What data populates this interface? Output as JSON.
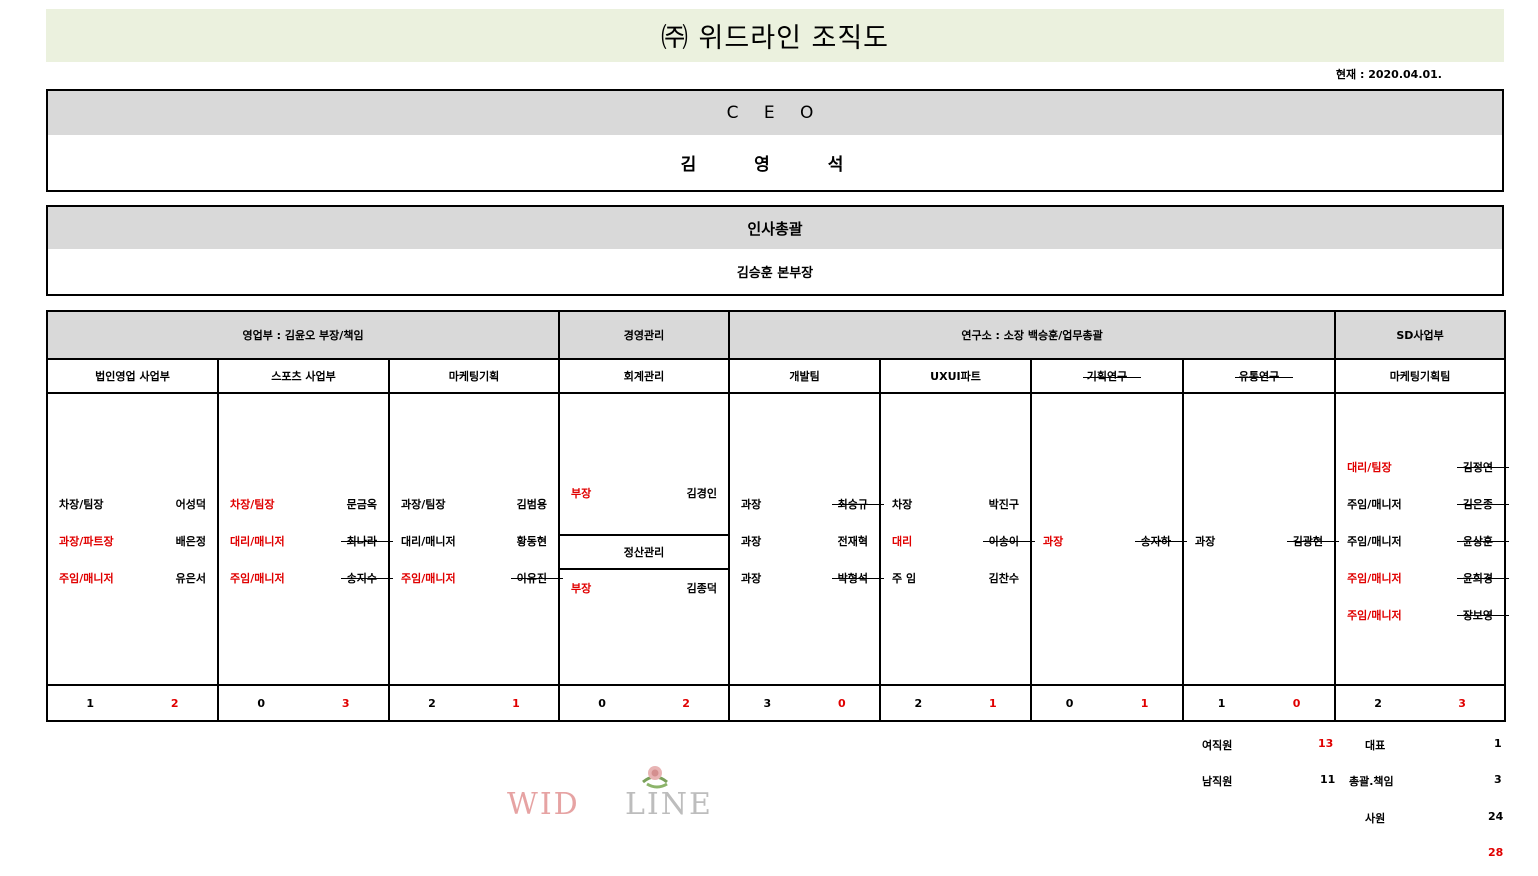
{
  "header": {
    "title": "㈜ 위드라인 조직도",
    "date": "현재 : 2020.04.01."
  },
  "ceo": {
    "label": "C E O",
    "name": "김 영 석"
  },
  "hr": {
    "label": "인사총괄",
    "name": "김승훈 본부장"
  },
  "groups": [
    {
      "label": "영업부 : 김윤오 부장/책임"
    },
    {
      "label": "경영관리"
    },
    {
      "label": "연구소 : 소장 백승훈/업무총괄"
    },
    {
      "label": "SD사업부"
    }
  ],
  "teams": [
    {
      "name": "법인영업 사업부",
      "members": [
        {
          "title": "차장/팀장",
          "name": "어성덕",
          "red": false,
          "struck": false
        },
        {
          "title": "과장/파트장",
          "name": "배은정",
          "red": true,
          "struck": false
        },
        {
          "title": "주임/매니저",
          "name": "유은서",
          "red": true,
          "struck": false
        }
      ],
      "counts": [
        "1",
        "2"
      ]
    },
    {
      "name": "스포츠 사업부",
      "members": [
        {
          "title": "차장/팀장",
          "name": "문금옥",
          "red": true,
          "struck": false
        },
        {
          "title": "대리/매니저",
          "name": "최나라",
          "red": true,
          "struck": true
        },
        {
          "title": "주임/매니저",
          "name": "송지수",
          "red": true,
          "struck": true
        }
      ],
      "counts": [
        "0",
        "3"
      ]
    },
    {
      "name": "마케팅기획",
      "members": [
        {
          "title": "과장/팀장",
          "name": "김범용",
          "red": false,
          "struck": false
        },
        {
          "title": "대리/매니저",
          "name": "황동현",
          "red": false,
          "struck": false
        },
        {
          "title": "주임/매니저",
          "name": "이유진",
          "red": true,
          "struck": true
        }
      ],
      "counts": [
        "2",
        "1"
      ]
    },
    {
      "name": "회계관리",
      "members": [
        {
          "title": "부장",
          "name": "김경인",
          "red": true,
          "struck": false
        }
      ],
      "sub": {
        "name": "정산관리",
        "members": [
          {
            "title": "부장",
            "name": "김종덕",
            "red": true,
            "struck": false
          }
        ]
      },
      "counts": [
        "0",
        "2"
      ]
    },
    {
      "name": "개발팀",
      "members": [
        {
          "title": "과장",
          "name": "최승규",
          "red": false,
          "struck": true
        },
        {
          "title": "과장",
          "name": "전재혁",
          "red": false,
          "struck": false
        },
        {
          "title": "과장",
          "name": "박형석",
          "red": false,
          "struck": true
        }
      ],
      "counts": [
        "3",
        "0"
      ]
    },
    {
      "name": "UXUI파트",
      "members": [
        {
          "title": "차장",
          "name": "박진구",
          "red": false,
          "struck": false
        },
        {
          "title": "대리",
          "name": "이송이",
          "red": true,
          "struck": true
        },
        {
          "title": "주 임",
          "name": "김찬수",
          "red": false,
          "struck": false
        }
      ],
      "counts": [
        "2",
        "1"
      ]
    },
    {
      "name": "기획연구",
      "struck": true,
      "members": [
        {
          "title": "과장",
          "name": "송자하",
          "red": true,
          "struck": true
        }
      ],
      "counts": [
        "0",
        "1"
      ]
    },
    {
      "name": "유통연구",
      "struck": true,
      "members": [
        {
          "title": "과장",
          "name": "김광현",
          "red": false,
          "struck": true
        }
      ],
      "counts": [
        "1",
        "0"
      ]
    },
    {
      "name": "마케팅기획팀",
      "members": [
        {
          "title": "대리/팀장",
          "name": "김정연",
          "red": true,
          "struck": true
        },
        {
          "title": "주임/매니저",
          "name": "김은종",
          "red": false,
          "struck": true
        },
        {
          "title": "주임/매니저",
          "name": "윤상훈",
          "red": false,
          "struck": true
        },
        {
          "title": "주임/매니저",
          "name": "윤희경",
          "red": true,
          "struck": true
        },
        {
          "title": "주임/매니저",
          "name": "장보영",
          "red": true,
          "struck": true
        }
      ],
      "counts": [
        "2",
        "3"
      ]
    }
  ],
  "summary": {
    "female_label": "여직원",
    "female_count": "13",
    "male_label": "남직원",
    "male_count": "11",
    "ceo_label": "대표",
    "ceo_count": "1",
    "lead_label": "총괄.책임",
    "lead_count": "3",
    "staff_label": "사원",
    "staff_count": "24",
    "total": "28"
  },
  "logo": {
    "text": "WIDLINE"
  },
  "colors": {
    "title_bg": "#ebf1de",
    "header_bg": "#d9d9d9",
    "red": "#e00000"
  }
}
